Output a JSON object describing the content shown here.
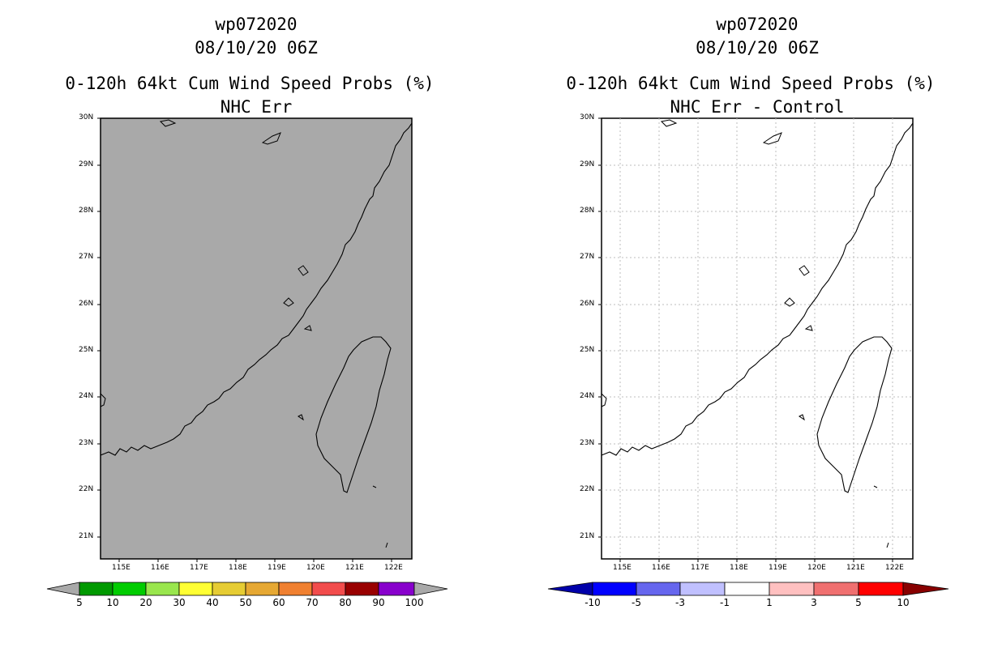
{
  "left_panel": {
    "title_line1": "wp072020",
    "title_line2": "08/10/20 06Z",
    "title_line3": "0-120h 64kt Cum Wind Speed Probs (%)",
    "title_line4": "NHC Err",
    "fill_color": "#a9a9a9",
    "colorbar": {
      "colors": [
        "#a9a9a9",
        "#009900",
        "#00cc00",
        "#99e64d",
        "#ffff33",
        "#e6cc33",
        "#e6a833",
        "#f08030",
        "#f24c4c",
        "#990000",
        "#8800cc",
        "#a9a9a9"
      ],
      "labels": [
        "5",
        "10",
        "20",
        "30",
        "40",
        "50",
        "60",
        "70",
        "80",
        "90",
        "100"
      ]
    }
  },
  "right_panel": {
    "title_line1": "wp072020",
    "title_line2": "08/10/20 06Z",
    "title_line3": "0-120h 64kt Cum Wind Speed Probs (%)",
    "title_line4": "NHC Err - Control",
    "fill_color": "#ffffff",
    "colorbar": {
      "colors": [
        "#0000aa",
        "#0000ff",
        "#6666ee",
        "#c0c0ff",
        "#ffffff",
        "#ffc0c0",
        "#f07070",
        "#ff0000",
        "#880000"
      ],
      "labels": [
        "-10",
        "-5",
        "-3",
        "-1",
        "1",
        "3",
        "5",
        "10"
      ]
    }
  },
  "axes": {
    "lat_labels": [
      "30N",
      "29N",
      "28N",
      "27N",
      "26N",
      "25N",
      "24N",
      "23N",
      "22N",
      "21N"
    ],
    "lon_labels": [
      "115E",
      "116E",
      "117E",
      "118E",
      "119E",
      "120E",
      "121E",
      "122E"
    ]
  }
}
